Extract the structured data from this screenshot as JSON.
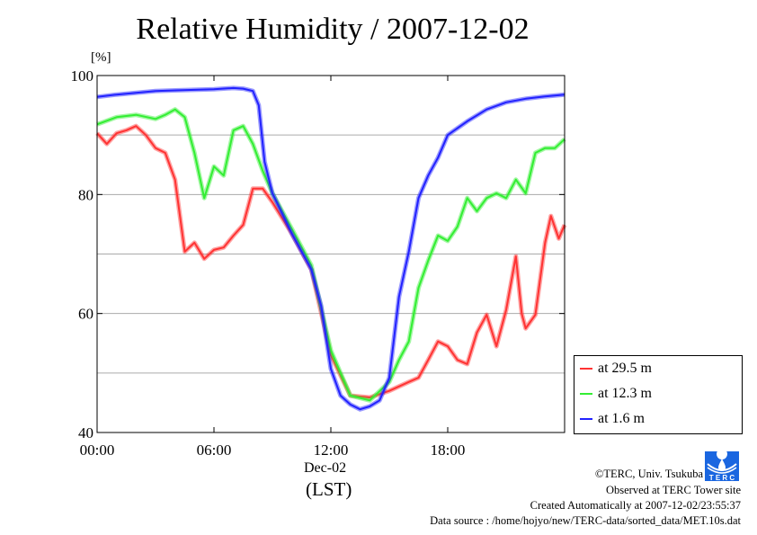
{
  "chart_data": {
    "type": "line",
    "title": "Relative Humidity / 2007-12-02",
    "ylabel": "[%]",
    "xlabel_date": "Dec-02",
    "xlabel": "(LST)",
    "xlim": [
      0,
      24
    ],
    "ylim": [
      40,
      100
    ],
    "xticks": [
      {
        "v": 0,
        "label": "00:00"
      },
      {
        "v": 6,
        "label": "06:00"
      },
      {
        "v": 12,
        "label": "12:00"
      },
      {
        "v": 18,
        "label": "18:00"
      }
    ],
    "yticks": [
      {
        "v": 40,
        "label": "40"
      },
      {
        "v": 60,
        "label": "60"
      },
      {
        "v": 80,
        "label": "80"
      },
      {
        "v": 100,
        "label": "100"
      }
    ],
    "grid": true,
    "legend_position": "bottom-right-outside",
    "series": [
      {
        "name": "at 29.5 m",
        "color": "#ff3333",
        "x": [
          0,
          0.5,
          1,
          1.5,
          2,
          2.5,
          3,
          3.5,
          4,
          4.5,
          5,
          5.5,
          6,
          6.5,
          7,
          7.5,
          8,
          8.5,
          9,
          10,
          11,
          12,
          13,
          14,
          15,
          16,
          16.5,
          17,
          17.5,
          18,
          18.5,
          19,
          19.5,
          20,
          20.5,
          21,
          21.5,
          21.8,
          22,
          22.5,
          23,
          23.3,
          23.7,
          24
        ],
        "y": [
          90.3,
          88.5,
          90.3,
          90.8,
          91.5,
          90,
          87.8,
          87,
          82.5,
          70.4,
          71.9,
          69.2,
          70.7,
          71.1,
          73.1,
          74.9,
          81,
          81,
          78.7,
          73.4,
          67.4,
          53,
          46.2,
          45.9,
          47,
          48.5,
          49.2,
          52.2,
          55.3,
          54.5,
          52.2,
          51.5,
          56.8,
          59.8,
          54.5,
          60.6,
          69.6,
          60,
          57.5,
          59.8,
          71.9,
          76.4,
          72.6,
          74.9
        ]
      },
      {
        "name": "at 12.3 m",
        "color": "#33ee33",
        "x": [
          0,
          1,
          2,
          3,
          3.5,
          4,
          4.5,
          5,
          5.5,
          6,
          6.5,
          7,
          7.5,
          8,
          8.5,
          9,
          10,
          11,
          12,
          13,
          14,
          15,
          15.5,
          16,
          16.5,
          17,
          17.5,
          18,
          18.5,
          19,
          19.5,
          20,
          20.5,
          21,
          21.5,
          22,
          22.5,
          23,
          23.5,
          24
        ],
        "y": [
          91.8,
          93,
          93.4,
          92.7,
          93.4,
          94.3,
          93,
          87,
          79.4,
          84.7,
          83.2,
          90.8,
          91.5,
          88.5,
          84,
          80.2,
          74.2,
          68.1,
          53.8,
          46.2,
          45.4,
          48.5,
          52.2,
          55.3,
          64.3,
          68.9,
          73.1,
          72.2,
          74.6,
          79.4,
          77.2,
          79.4,
          80.2,
          79.4,
          82.5,
          80.2,
          87,
          87.8,
          87.8,
          89.3
        ]
      },
      {
        "name": "at 1.6 m",
        "color": "#2222ff",
        "x": [
          0,
          1,
          2,
          3,
          4,
          5,
          6,
          7,
          7.5,
          8,
          8.3,
          8.6,
          9,
          10,
          11,
          11.5,
          12,
          12.5,
          13,
          13.5,
          14,
          14.5,
          15,
          15.5,
          16,
          16.5,
          17,
          17.5,
          18,
          19,
          20,
          21,
          22,
          23,
          24
        ],
        "y": [
          96.4,
          96.8,
          97.1,
          97.4,
          97.5,
          97.6,
          97.7,
          97.9,
          97.8,
          97.4,
          95,
          85.5,
          80.2,
          73.4,
          67.4,
          61.3,
          50.7,
          46.2,
          44.7,
          43.9,
          44.4,
          45.4,
          49.2,
          62.8,
          70.4,
          79.4,
          83.2,
          86.2,
          90,
          92.3,
          94.3,
          95.5,
          96.1,
          96.5,
          96.8
        ]
      }
    ]
  },
  "footer": {
    "copyright": "©TERC, Univ. Tsukuba",
    "observed": "Observed at TERC Tower site",
    "created": "Created Automatically at 2007-12-02/23:55:37",
    "source": "Data source : /home/hojyo/new/TERC-data/sorted_data/MET.10s.dat",
    "logo_text": "TERC"
  }
}
